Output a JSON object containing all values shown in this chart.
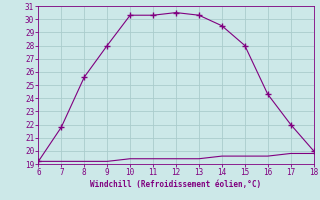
{
  "xlabel": "Windchill (Refroidissement éolien,°C)",
  "x_upper": [
    6,
    7,
    8,
    9,
    10,
    11,
    12,
    13,
    14,
    15,
    16,
    17,
    18
  ],
  "y_upper": [
    19.2,
    21.8,
    25.6,
    28.0,
    30.3,
    30.3,
    30.5,
    30.3,
    29.5,
    28.0,
    24.3,
    22.0,
    20.0
  ],
  "x_lower": [
    6,
    7,
    8,
    9,
    10,
    11,
    12,
    13,
    14,
    15,
    16,
    17,
    18
  ],
  "y_lower": [
    19.2,
    19.2,
    19.2,
    19.2,
    19.4,
    19.4,
    19.4,
    19.4,
    19.6,
    19.6,
    19.6,
    19.8,
    19.8
  ],
  "line_color": "#800080",
  "marker": "+",
  "bg_color": "#cce8e8",
  "grid_color": "#aacccc",
  "text_color": "#800080",
  "xlim": [
    6,
    18
  ],
  "ylim": [
    19,
    31
  ],
  "xticks": [
    6,
    7,
    8,
    9,
    10,
    11,
    12,
    13,
    14,
    15,
    16,
    17,
    18
  ],
  "yticks": [
    19,
    20,
    21,
    22,
    23,
    24,
    25,
    26,
    27,
    28,
    29,
    30,
    31
  ]
}
